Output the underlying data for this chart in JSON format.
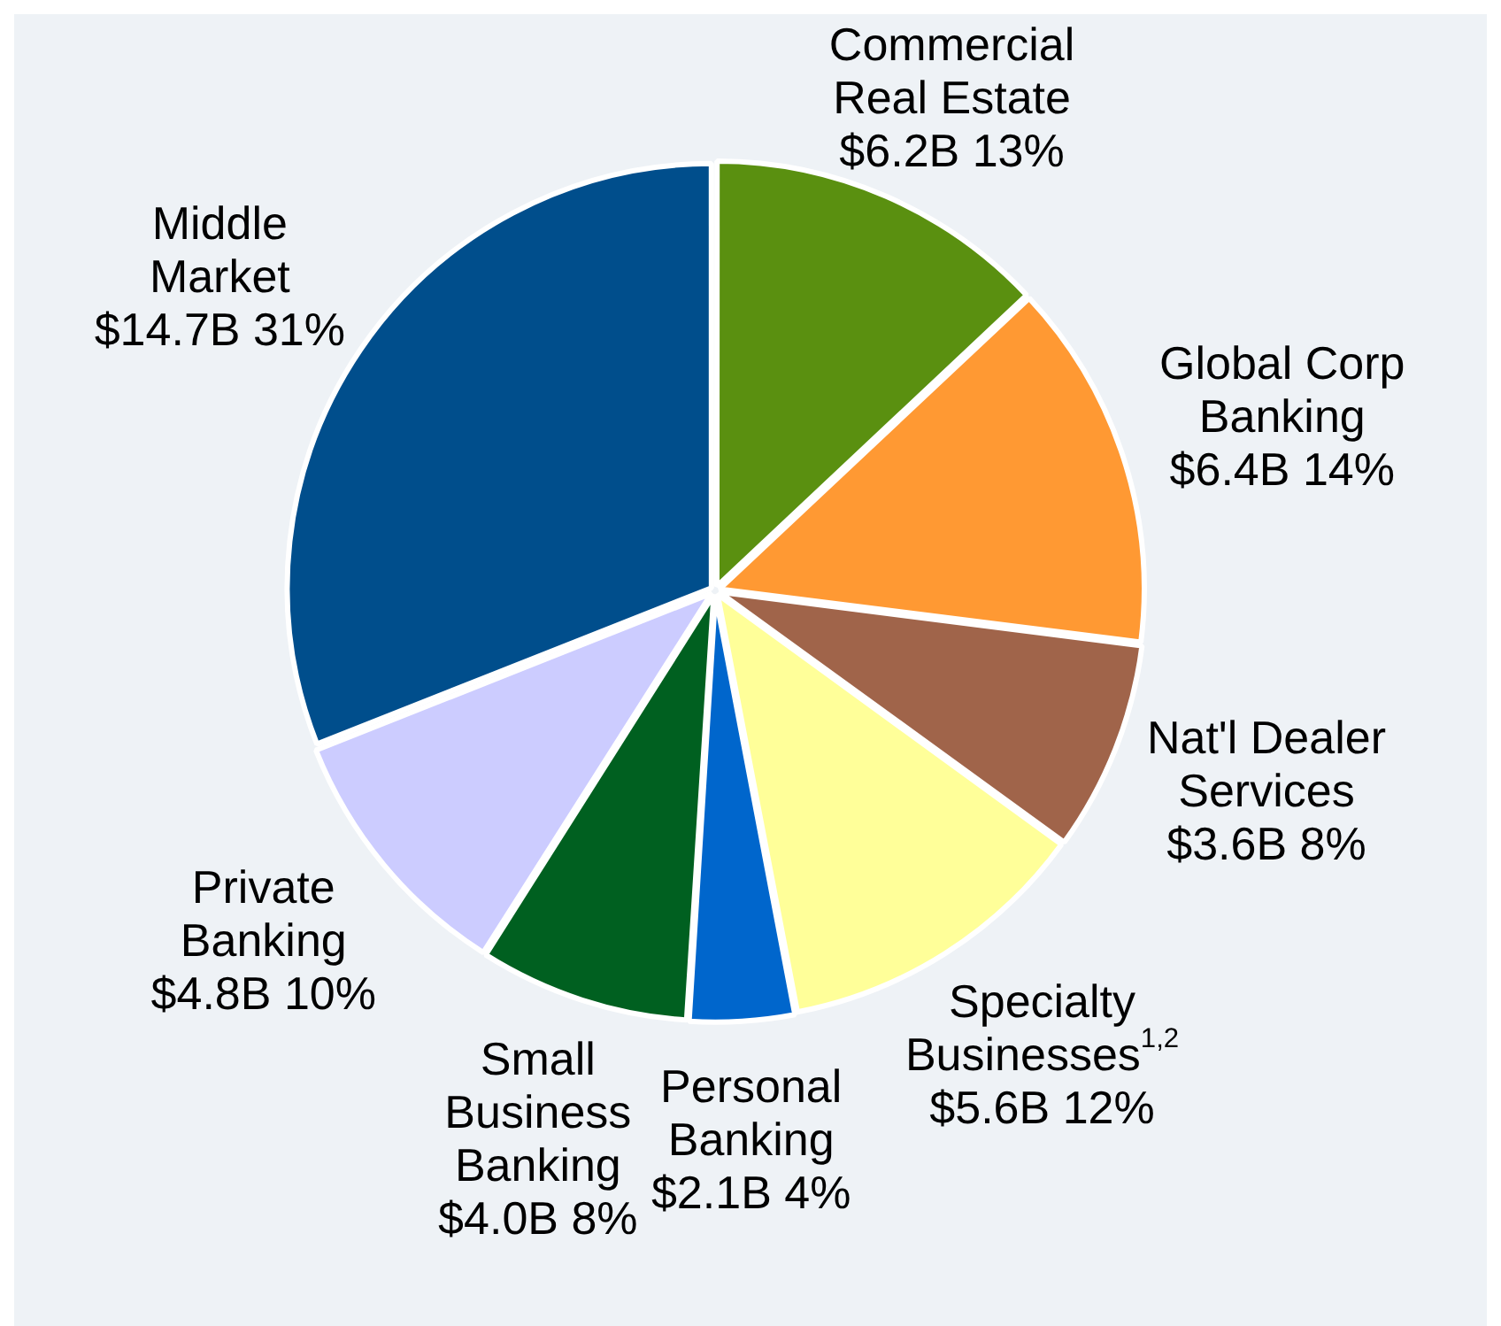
{
  "chart_data": {
    "type": "pie",
    "categories": [
      "Commercial Real Estate",
      "Global Corp Banking",
      "Nat'l Dealer Services",
      "Specialty Businesses$^{1,2}$",
      "Personal Banking",
      "Small Business Banking",
      "Private Banking",
      "Middle Market"
    ],
    "values": [
      13,
      14,
      8,
      12,
      4,
      8,
      10,
      31
    ],
    "value_labels": [
      "$6.2B 13%",
      "$6.4B 14%",
      "$3.6B 8%",
      "$5.6B 12%",
      "$2.1B 4%",
      "$4.0B 8%",
      "$4.8B 10%",
      "$14.7B 31%"
    ],
    "colors": [
      "#5a9010",
      "#ff9933",
      "#a0644a",
      "#ffff99",
      "#0066cc",
      "#006020",
      "#ccccff",
      "#004e8c"
    ],
    "legend": false
  }
}
